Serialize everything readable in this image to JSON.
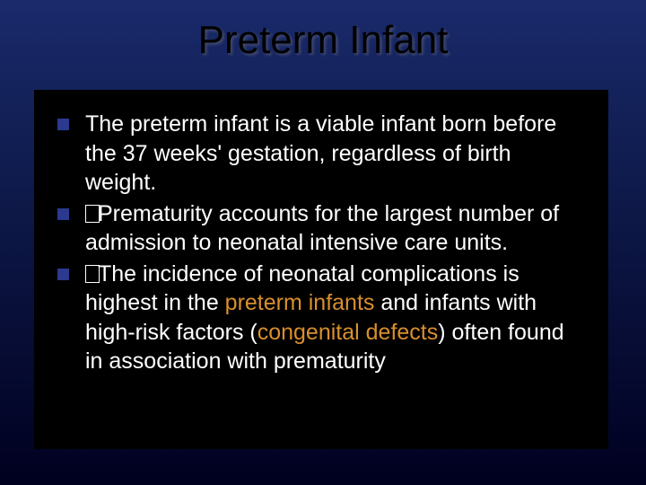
{
  "slide": {
    "title": "Preterm Infant",
    "background_gradient_top": "#1a2a6b",
    "background_gradient_mid": "#0e1a4a",
    "background_gradient_bottom": "#000020",
    "content_background": "#000000",
    "title_color": "#000000",
    "body_text_color": "#ffffff",
    "highlight_color": "#d98f2e",
    "bullet_color": "#2b3a8f",
    "title_fontsize": 44,
    "body_fontsize": 25,
    "bullets": [
      {
        "prefix": "",
        "segments": [
          {
            "text": "The preterm infant is a viable infant born before the 37 weeks' gestation, regardless of birth weight.",
            "highlight": false
          }
        ]
      },
      {
        "prefix": "tofu",
        "segments": [
          {
            "text": "Prematurity accounts for the largest number of admission to neonatal intensive care units.",
            "highlight": false
          }
        ]
      },
      {
        "prefix": "tofu",
        "segments": [
          {
            "text": "The incidence of neonatal complications is highest in the ",
            "highlight": false
          },
          {
            "text": "preterm infants",
            "highlight": true
          },
          {
            "text": " and infants with high-risk factors (",
            "highlight": false
          },
          {
            "text": "congenital defects",
            "highlight": true
          },
          {
            "text": ") often found in association with prematurity",
            "highlight": false
          }
        ]
      }
    ]
  }
}
